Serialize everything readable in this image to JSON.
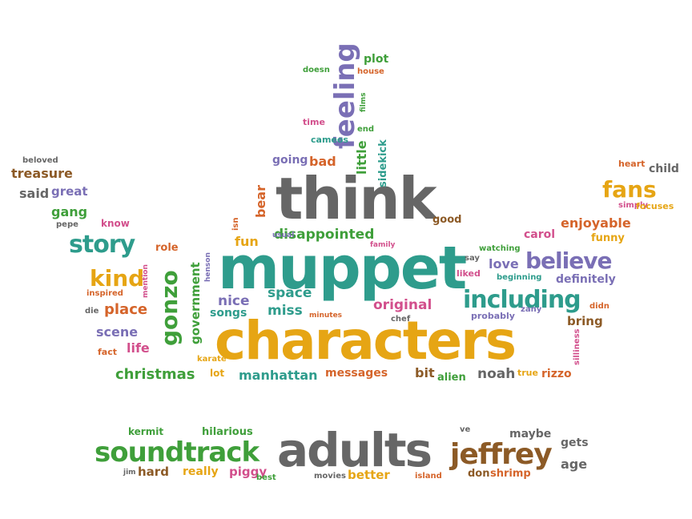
{
  "palette": {
    "teal": "#2e9c8c",
    "green": "#3f9f3a",
    "yellow": "#e6a514",
    "gray": "#666666",
    "purple": "#7a6fb5",
    "orange": "#d5642a",
    "pink": "#d24f8c",
    "brown": "#8c5a26"
  },
  "words": {
    "muppet": "muppet",
    "characters": "characters",
    "think": "think",
    "adults": "adults",
    "soundtrack": "soundtrack",
    "jeffrey": "jeffrey",
    "feeling": "feeling",
    "including": "including",
    "believe": "believe",
    "story": "story",
    "fans": "fans",
    "kind": "kind",
    "gonzo": "gonzo",
    "disappointed": "disappointed",
    "christmas": "christmas",
    "manhattan": "manhattan",
    "government": "government",
    "original": "original",
    "noah": "noah",
    "space": "space",
    "miss": "miss",
    "nice": "nice",
    "songs": "songs",
    "place": "place",
    "scene": "scene",
    "life": "life",
    "bear": "bear",
    "fun": "fun",
    "treasure": "treasure",
    "said": "said",
    "great": "great",
    "gang": "gang",
    "enjoyable": "enjoyable",
    "funny": "funny",
    "definitely": "definitely",
    "love": "love",
    "carol": "carol",
    "messages": "messages",
    "bit": "bit",
    "alien": "alien",
    "rizzo": "rizzo",
    "bring": "bring",
    "little": "little",
    "sidekick": "sidekick",
    "going": "going",
    "bad": "bad",
    "plot": "plot",
    "house": "house",
    "doesn": "doesn",
    "films": "films",
    "time": "time",
    "end": "end",
    "cameos": "cameos",
    "beloved": "beloved",
    "pepe": "pepe",
    "know": "know",
    "role": "role",
    "isn": "isn",
    "usual": "usual",
    "family": "family",
    "good": "good",
    "henson": "henson",
    "mention": "mention",
    "inspired": "inspired",
    "die": "die",
    "fact": "fact",
    "karate": "karate",
    "lot": "lot",
    "minutes": "minutes",
    "chef": "chef",
    "liked": "liked",
    "say": "say",
    "watching": "watching",
    "beginning": "beginning",
    "probably": "probably",
    "zany": "zany",
    "didn": "didn",
    "true": "true",
    "silliness": "silliness",
    "heart": "heart",
    "child": "child",
    "simply": "simply",
    "focuses": "focuses",
    "kermit": "kermit",
    "hilarious": "hilarious",
    "jim": "jim",
    "hard": "hard",
    "really": "really",
    "piggy": "piggy",
    "best": "best",
    "movies": "movies",
    "better": "better",
    "island": "island",
    "don": "don",
    "shrimp": "shrimp",
    "ve": "ve",
    "maybe": "maybe",
    "gets": "gets",
    "age": "age"
  }
}
